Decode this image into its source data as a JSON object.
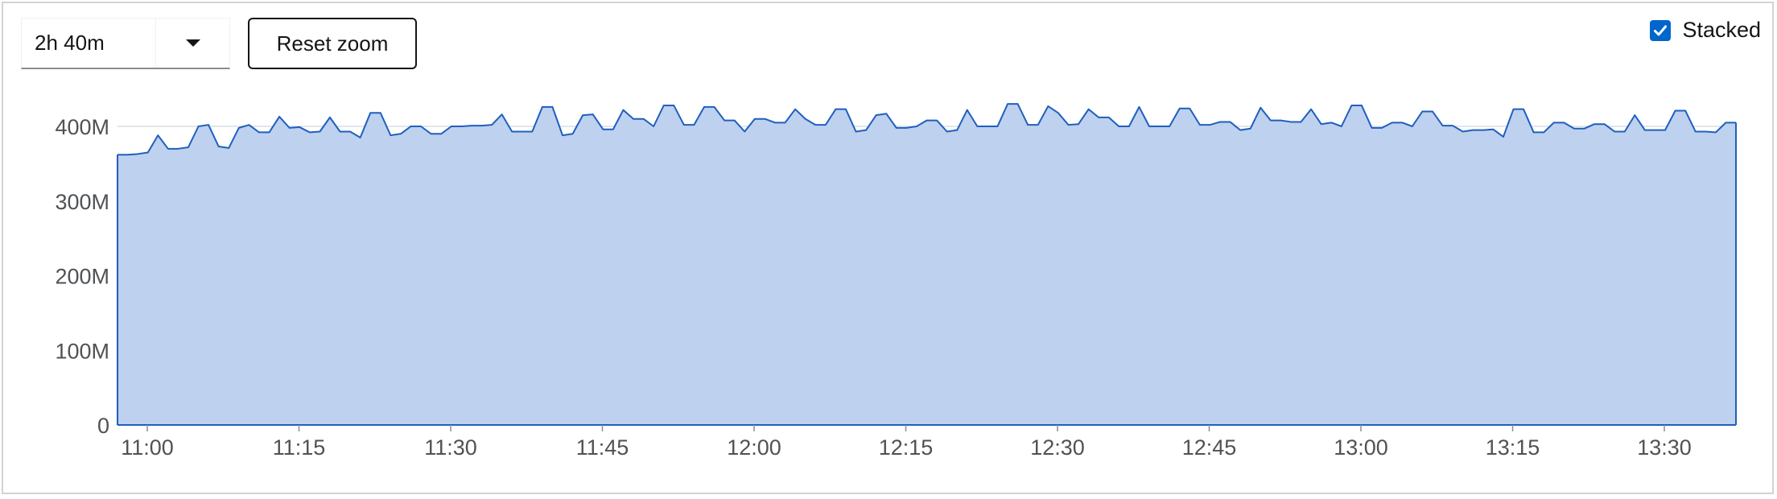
{
  "toolbar": {
    "duration_value": "2h 40m",
    "reset_label": "Reset zoom"
  },
  "stacked": {
    "label": "Stacked",
    "checked": true
  },
  "colors": {
    "series_line": "#1f5fbf",
    "series_fill": "#bed1ee",
    "grid": "#d8dde6",
    "axis": "#1f5fbf",
    "checkbox": "#0066cc"
  },
  "chart_data": {
    "type": "area",
    "stacked": true,
    "grid": true,
    "x_tick_labels": [
      "11:00",
      "11:15",
      "11:30",
      "11:45",
      "12:00",
      "12:15",
      "12:30",
      "12:45",
      "13:00",
      "13:15",
      "13:30"
    ],
    "y_tick_labels": [
      "0",
      "100M",
      "200M",
      "300M",
      "400M"
    ],
    "y_ticks": [
      0,
      100,
      200,
      300,
      400
    ],
    "ylim": [
      0,
      400
    ],
    "series": [
      {
        "values": [
          362,
          362,
          363,
          365,
          388,
          370,
          370,
          372,
          400,
          402,
          373,
          371,
          398,
          402,
          392,
          392,
          413,
          398,
          399,
          392,
          393,
          412,
          393,
          393,
          385,
          418,
          418,
          388,
          390,
          400,
          400,
          390,
          390,
          400,
          400,
          401,
          401,
          402,
          416,
          393,
          393,
          393,
          426,
          426,
          388,
          390,
          415,
          416,
          396,
          396,
          422,
          410,
          410,
          400,
          428,
          428,
          402,
          402,
          426,
          426,
          408,
          408,
          393,
          410,
          410,
          405,
          405,
          423,
          410,
          402,
          402,
          423,
          423,
          393,
          395,
          415,
          417,
          398,
          398,
          400,
          408,
          408,
          393,
          395,
          422,
          400,
          400,
          400,
          430,
          430,
          402,
          402,
          427,
          418,
          402,
          403,
          423,
          412,
          412,
          400,
          400,
          426,
          400,
          400,
          400,
          424,
          424,
          402,
          402,
          406,
          406,
          395,
          397,
          425,
          408,
          408,
          406,
          406,
          423,
          403,
          405,
          400,
          428,
          428,
          398,
          398,
          405,
          405,
          400,
          420,
          420,
          401,
          401,
          393,
          395,
          395,
          396,
          386,
          423,
          423,
          392,
          392,
          405,
          405,
          397,
          397,
          403,
          403,
          393,
          393,
          415,
          395,
          395,
          395,
          421,
          421,
          393,
          393,
          392,
          405,
          405
        ]
      }
    ]
  }
}
